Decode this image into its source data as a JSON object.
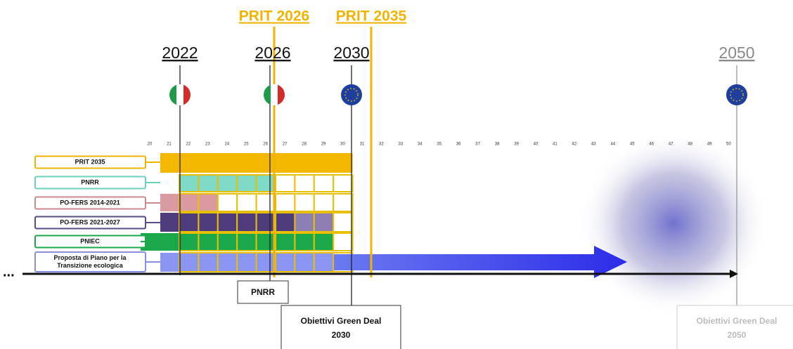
{
  "headers": {
    "prit_2026": "PRIT 2026",
    "prit_2035": "PRIT 2035"
  },
  "milestones": [
    "2022",
    "2026",
    "2030",
    "2050"
  ],
  "scale": [
    20,
    21,
    22,
    23,
    24,
    25,
    26,
    27,
    28,
    29,
    30,
    31,
    32,
    33,
    34,
    35,
    36,
    37,
    38,
    39,
    40,
    41,
    42,
    43,
    44,
    45,
    46,
    47,
    48,
    49,
    50
  ],
  "rows": [
    {
      "label": [
        "PRIT 2035"
      ]
    },
    {
      "label": [
        "PNRR"
      ]
    },
    {
      "label": [
        "PO-FERS 2014-2021"
      ]
    },
    {
      "label": [
        "PO-FERS 2021-2027"
      ]
    },
    {
      "label": [
        "PNIEC"
      ]
    },
    {
      "label": [
        "Proposta di Piano per la",
        "Transizione ecologica"
      ]
    }
  ],
  "boxes": {
    "pnrr": "PNRR",
    "green_deal_2030": [
      "Obiettivi Green Deal",
      "2030"
    ],
    "green_deal_2050": [
      "Obiettivi Green  Deal",
      "2050"
    ]
  },
  "ellipsis": "..."
}
